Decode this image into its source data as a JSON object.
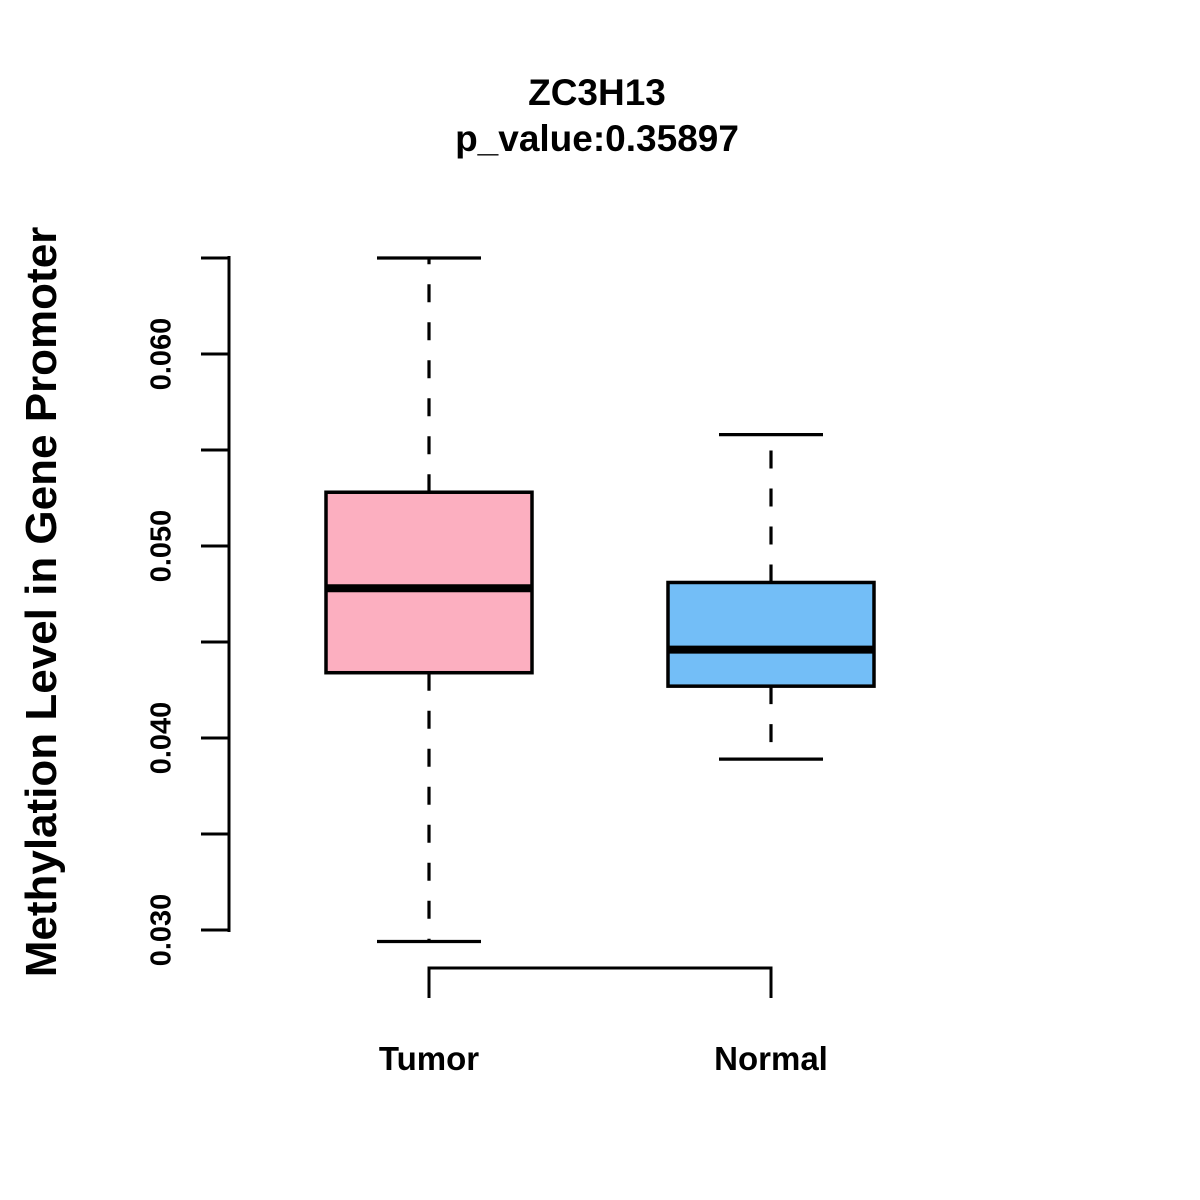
{
  "chart_data": {
    "type": "boxplot",
    "title": "ZC3H13",
    "subtitle": "p_value:0.35897",
    "ylabel": "Methylation Level in Gene Promoter",
    "xlabel": "",
    "axis": {
      "min": 0.03,
      "max": 0.065,
      "tick_step": 0.005,
      "labeled_ticks": [
        0.03,
        0.04,
        0.05,
        0.06
      ],
      "tick_decimals": 3
    },
    "legend": "none",
    "grid": false,
    "groups": [
      {
        "label": "Tumor",
        "fill_color": "#FCAFC0",
        "stats": {
          "whisker_low": 0.0294,
          "q1": 0.0434,
          "median": 0.0478,
          "q3": 0.0528,
          "whisker_high": 0.065
        }
      },
      {
        "label": "Normal",
        "fill_color": "#73BEF7",
        "stats": {
          "whisker_low": 0.0389,
          "q1": 0.0427,
          "median": 0.0446,
          "q3": 0.0481,
          "whisker_high": 0.0558
        }
      }
    ],
    "colors": {
      "stroke": "#000000",
      "background": "#FFFFFF"
    }
  }
}
